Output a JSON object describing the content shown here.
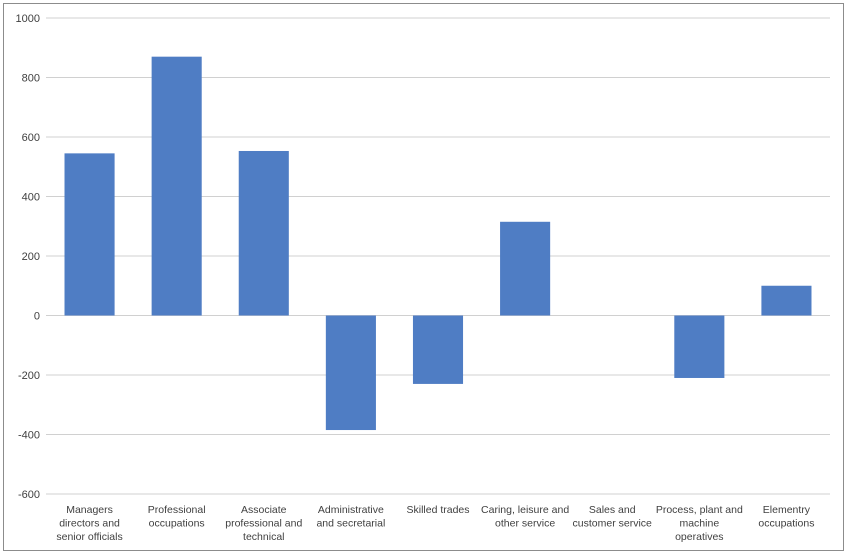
{
  "chart_data": {
    "type": "bar",
    "title": "",
    "xlabel": "",
    "ylabel": "",
    "categories": [
      [
        "Managers",
        "directors and",
        "senior officials"
      ],
      [
        "Professional",
        "occupations"
      ],
      [
        "Associate",
        "professional and",
        "technical"
      ],
      [
        "Administrative",
        "and secretarial"
      ],
      [
        "Skilled trades"
      ],
      [
        "Caring, leisure and",
        "other service"
      ],
      [
        "Sales and",
        "customer service"
      ],
      [
        "Process, plant and",
        "machine",
        "operatives"
      ],
      [
        "Elementry",
        "occupations"
      ]
    ],
    "values": [
      545,
      870,
      553,
      -385,
      -230,
      315,
      0,
      -210,
      100
    ],
    "ylim": [
      -600,
      1000
    ],
    "yticks": [
      1000,
      800,
      600,
      400,
      200,
      0,
      -200,
      -400,
      -600
    ],
    "grid": true,
    "legend": "none",
    "colors": {
      "bar": "#4f7dc4",
      "grid": "#d0d0d0",
      "text": "#404040",
      "border": "#8c8c8c"
    }
  }
}
